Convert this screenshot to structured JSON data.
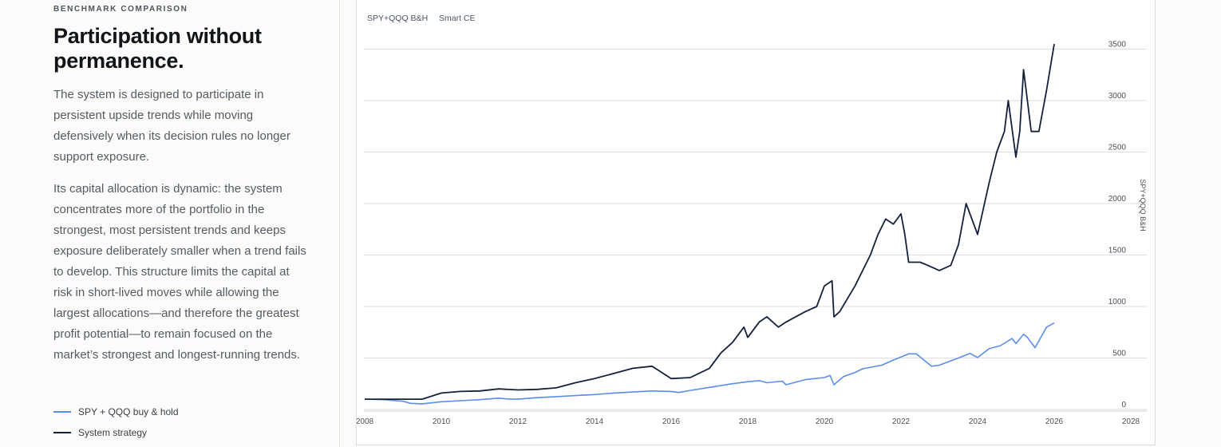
{
  "section": {
    "eyebrow": "BENCHMARK COMPARISON",
    "title": "Participation without permanence.",
    "paragraphs": [
      "The system is designed to participate in persistent upside trends while moving defensively when its decision rules no longer support exposure.",
      "Its capital allocation is dynamic: the system concentrates more of the portfolio in the strongest, most persistent trends and keeps exposure deliberately smaller when a trend fails to develop. This structure limits the capital at risk in short-lived moves while allowing the largest allocations—and therefore the greatest profit potential—to remain focused on the market’s strongest and longest-running trends."
    ]
  },
  "legend": [
    {
      "label": "SPY + QQQ buy & hold",
      "color": "#5b8def"
    },
    {
      "label": "System strategy",
      "color": "#14213a"
    }
  ],
  "chart_data": {
    "type": "line",
    "title": "",
    "xlabel": "",
    "ylabel": "SPY+QQQ B&H",
    "xlim": [
      2008,
      2028
    ],
    "ylim": [
      0,
      3500
    ],
    "x_ticks": [
      "2008",
      "2010",
      "2012",
      "2014",
      "2016",
      "2018",
      "2020",
      "2022",
      "2024",
      "2026",
      "2028"
    ],
    "y_ticks": [
      "0",
      "500",
      "1000",
      "1500",
      "2000",
      "2500",
      "3000",
      "3500"
    ],
    "grid": "horizontal",
    "top_legend": [
      "SPY+QQQ B&H",
      "Smart CE"
    ],
    "series": [
      {
        "name": "SPY+QQQ B&H",
        "color": "#5b8def",
        "x": [
          2008.0,
          2008.5,
          2009.0,
          2009.2,
          2009.5,
          2010.0,
          2010.5,
          2011.0,
          2011.5,
          2011.8,
          2012.0,
          2012.5,
          2013.0,
          2013.5,
          2014.0,
          2014.5,
          2015.0,
          2015.5,
          2016.0,
          2016.2,
          2016.5,
          2017.0,
          2017.5,
          2018.0,
          2018.3,
          2018.5,
          2018.9,
          2019.0,
          2019.5,
          2020.0,
          2020.15,
          2020.25,
          2020.5,
          2020.8,
          2021.0,
          2021.5,
          2021.8,
          2022.0,
          2022.2,
          2022.4,
          2022.6,
          2022.8,
          2023.0,
          2023.5,
          2023.8,
          2024.0,
          2024.3,
          2024.6,
          2024.9,
          2025.0,
          2025.2,
          2025.3,
          2025.5,
          2025.8,
          2026.0
        ],
        "y": [
          100,
          95,
          80,
          60,
          55,
          75,
          85,
          95,
          110,
          100,
          100,
          115,
          125,
          135,
          145,
          160,
          170,
          180,
          175,
          165,
          185,
          215,
          245,
          270,
          280,
          260,
          275,
          240,
          290,
          310,
          330,
          240,
          320,
          360,
          395,
          430,
          480,
          510,
          540,
          540,
          480,
          420,
          430,
          500,
          545,
          505,
          590,
          620,
          690,
          640,
          730,
          700,
          600,
          800,
          840
        ]
      },
      {
        "name": "Smart CE",
        "color": "#14213a",
        "x": [
          2008.0,
          2008.5,
          2009.0,
          2009.5,
          2010.0,
          2010.5,
          2011.0,
          2011.5,
          2012.0,
          2012.5,
          2013.0,
          2013.5,
          2014.0,
          2014.5,
          2015.0,
          2015.5,
          2016.0,
          2016.5,
          2017.0,
          2017.3,
          2017.6,
          2017.9,
          2018.0,
          2018.3,
          2018.5,
          2018.8,
          2019.0,
          2019.5,
          2019.8,
          2020.0,
          2020.2,
          2020.25,
          2020.4,
          2020.8,
          2021.0,
          2021.2,
          2021.4,
          2021.6,
          2021.8,
          2022.0,
          2022.1,
          2022.2,
          2022.5,
          2022.7,
          2023.0,
          2023.3,
          2023.5,
          2023.7,
          2024.0,
          2024.3,
          2024.5,
          2024.7,
          2024.8,
          2025.0,
          2025.1,
          2025.2,
          2025.3,
          2025.4,
          2025.6,
          2025.8,
          2026.0
        ],
        "y": [
          100,
          100,
          100,
          100,
          160,
          175,
          180,
          200,
          190,
          195,
          210,
          260,
          300,
          350,
          400,
          420,
          300,
          310,
          400,
          550,
          650,
          800,
          700,
          850,
          900,
          800,
          850,
          950,
          1000,
          1200,
          1250,
          900,
          950,
          1200,
          1350,
          1500,
          1700,
          1850,
          1800,
          1900,
          1700,
          1430,
          1430,
          1400,
          1350,
          1400,
          1600,
          2000,
          1700,
          2200,
          2500,
          2700,
          3000,
          2450,
          2700,
          3300,
          3000,
          2700,
          2700,
          3100,
          3550
        ]
      }
    ]
  }
}
